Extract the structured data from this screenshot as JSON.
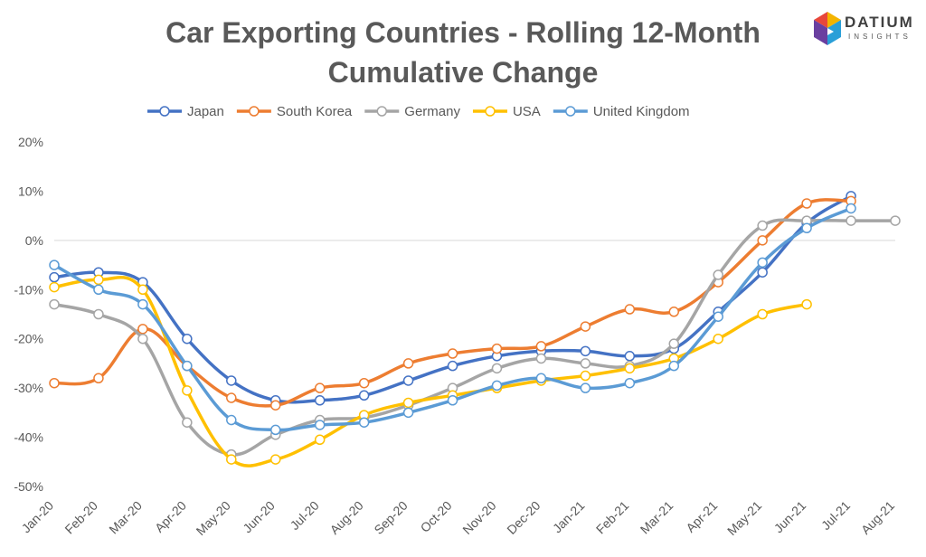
{
  "title_line1": "Car Exporting Countries - Rolling 12-Month",
  "title_line2": "Cumulative Change",
  "logo": {
    "word": "DATIUM",
    "sub": "INSIGHTS"
  },
  "chart_data": {
    "type": "line",
    "title": "Car Exporting Countries - Rolling 12-Month Cumulative Change",
    "xlabel": "",
    "ylabel": "",
    "ylim": [
      -50,
      20
    ],
    "y_ticks": [
      20,
      10,
      0,
      -10,
      -20,
      -30,
      -40,
      -50
    ],
    "y_tick_labels": [
      "20%",
      "10%",
      "0%",
      "-10%",
      "-20%",
      "-30%",
      "-40%",
      "-50%"
    ],
    "legend_position": "top",
    "grid": false,
    "categories": [
      "Jan-20",
      "Feb-20",
      "Mar-20",
      "Apr-20",
      "May-20",
      "Jun-20",
      "Jul-20",
      "Aug-20",
      "Sep-20",
      "Oct-20",
      "Nov-20",
      "Dec-20",
      "Jan-21",
      "Feb-21",
      "Mar-21",
      "Apr-21",
      "May-21",
      "Jun-21",
      "Jul-21",
      "Aug-21"
    ],
    "series": [
      {
        "name": "Japan",
        "color": "#4472C4",
        "values": [
          -7.5,
          -6.5,
          -8.5,
          -20,
          -28.5,
          -32.5,
          -32.5,
          -31.5,
          -28.5,
          -25.5,
          -23.5,
          -22.5,
          -22.5,
          -23.5,
          -22,
          -14.5,
          -6.5,
          3.5,
          9,
          null
        ]
      },
      {
        "name": "South Korea",
        "color": "#ED7D31",
        "values": [
          -29,
          -28,
          -18,
          -25.5,
          -32,
          -33.5,
          -30,
          -29,
          -25,
          -23,
          -22,
          -21.5,
          -17.5,
          -14,
          -14.5,
          -8.5,
          0,
          7.5,
          8,
          null
        ]
      },
      {
        "name": "Germany",
        "color": "#A5A5A5",
        "values": [
          -13,
          -15,
          -20,
          -37,
          -43.5,
          -39.5,
          -36.5,
          -36,
          -33.5,
          -30,
          -26,
          -24,
          -25,
          -25.5,
          -21,
          -7,
          3,
          4,
          4,
          4
        ]
      },
      {
        "name": "USA",
        "color": "#FFC000",
        "values": [
          -9.5,
          -8,
          -10,
          -30.5,
          -44.5,
          -44.5,
          -40.5,
          -35.5,
          -33,
          -31.5,
          -30,
          -28.5,
          -27.5,
          -26,
          -24,
          -20,
          -15,
          -13,
          null,
          null
        ]
      },
      {
        "name": "United Kingdom",
        "color": "#5B9BD5",
        "values": [
          -5,
          -10,
          -13,
          -25.5,
          -36.5,
          -38.5,
          -37.5,
          -37,
          -35,
          -32.5,
          -29.5,
          -28,
          -30,
          -29,
          -25.5,
          -15.5,
          -4.5,
          2.5,
          6.5,
          null
        ]
      }
    ]
  }
}
